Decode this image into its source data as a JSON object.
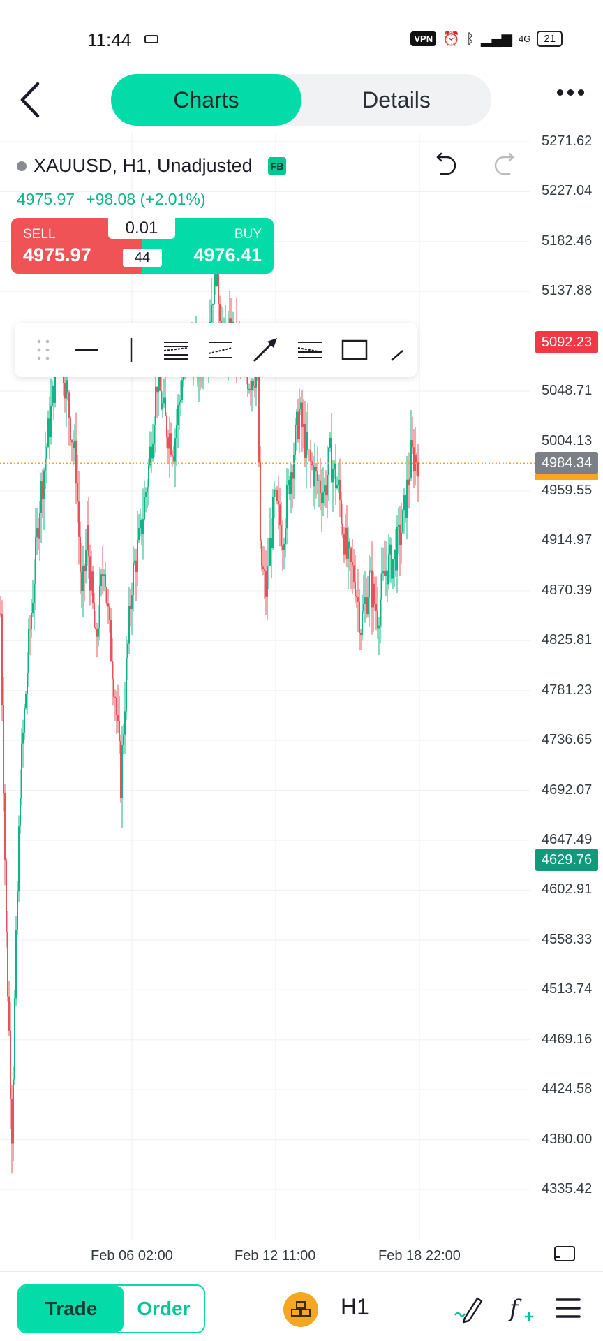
{
  "status_bar": {
    "time": "11:44",
    "vpn": "VPN",
    "network": "4G",
    "battery": "21"
  },
  "header": {
    "tabs": [
      {
        "label": "Charts",
        "active": true
      },
      {
        "label": "Details",
        "active": false
      }
    ]
  },
  "symbol": {
    "title": "XAUUSD, H1, Unadjusted",
    "badge": "FB",
    "price": "4975.97",
    "change": "+98.08 (+2.01%)"
  },
  "trade_widget": {
    "sell_label": "SELL",
    "sell_price": "4975.97",
    "buy_label": "BUY",
    "buy_price": "4976.41",
    "lot": "0.01",
    "spread": "44"
  },
  "drawing_tools": [
    "drag-handle",
    "horizontal-line",
    "vertical-line",
    "parallel-channel",
    "fibonacci-retracement",
    "arrow",
    "fibonacci-fan",
    "rectangle",
    "trend-line"
  ],
  "colors": {
    "accent": "#03dba8",
    "sell": "#f05355",
    "bull_candle": "#10b585",
    "bear_candle": "#e5545a",
    "last_price_line": "#f5a623"
  },
  "chart_data": {
    "type": "candlestick",
    "y_ticks": [
      "5271.62",
      "5227.04",
      "5182.46",
      "5137.88",
      "5048.71",
      "5004.13",
      "4959.55",
      "4914.97",
      "4870.39",
      "4825.81",
      "4781.23",
      "4736.65",
      "4692.07",
      "4647.49",
      "4602.91",
      "4558.33",
      "4513.74",
      "4469.16",
      "4424.58",
      "4380.00",
      "4335.42"
    ],
    "ylim": [
      4335.42,
      5271.62
    ],
    "x_ticks": [
      "Feb 06 02:00",
      "Feb 12 11:00",
      "Feb 18 22:00"
    ],
    "grid": true,
    "price_tags": [
      {
        "label": "5092.23",
        "value": 5092.23,
        "style": "red"
      },
      {
        "label": "4984.34",
        "value": 4984.34,
        "style": "grey"
      },
      {
        "label": "4629.76",
        "value": 4629.76,
        "style": "green"
      }
    ],
    "current_price": 4984.34,
    "trend": [
      [
        0,
        4850
      ],
      [
        4,
        4560
      ],
      [
        8,
        4390
      ],
      [
        10,
        4500
      ],
      [
        14,
        4700
      ],
      [
        20,
        4820
      ],
      [
        28,
        4950
      ],
      [
        36,
        5030
      ],
      [
        42,
        5100
      ],
      [
        48,
        5040
      ],
      [
        54,
        4980
      ],
      [
        58,
        4860
      ],
      [
        62,
        4920
      ],
      [
        68,
        4820
      ],
      [
        74,
        4900
      ],
      [
        78,
        4830
      ],
      [
        82,
        4780
      ],
      [
        86,
        4700
      ],
      [
        90,
        4800
      ],
      [
        94,
        4880
      ],
      [
        100,
        4920
      ],
      [
        106,
        4980
      ],
      [
        112,
        5060
      ],
      [
        118,
        5020
      ],
      [
        124,
        5000
      ],
      [
        130,
        5060
      ],
      [
        136,
        5090
      ],
      [
        142,
        5070
      ],
      [
        148,
        5100
      ],
      [
        154,
        5160
      ],
      [
        160,
        5090
      ],
      [
        166,
        5100
      ],
      [
        172,
        5080
      ],
      [
        178,
        5060
      ],
      [
        184,
        5070
      ],
      [
        186,
        4900
      ],
      [
        190,
        4870
      ],
      [
        196,
        4950
      ],
      [
        202,
        4920
      ],
      [
        208,
        4980
      ],
      [
        214,
        5030
      ],
      [
        220,
        4990
      ],
      [
        226,
        4970
      ],
      [
        232,
        4960
      ],
      [
        236,
        4990
      ],
      [
        242,
        4960
      ],
      [
        248,
        4900
      ],
      [
        254,
        4880
      ],
      [
        258,
        4840
      ],
      [
        264,
        4880
      ],
      [
        270,
        4850
      ],
      [
        276,
        4890
      ],
      [
        282,
        4900
      ],
      [
        288,
        4930
      ],
      [
        294,
        4990
      ],
      [
        300,
        4990
      ]
    ]
  },
  "bottom_bar": {
    "trade_label": "Trade",
    "order_label": "Order",
    "timeframe": "H1"
  }
}
